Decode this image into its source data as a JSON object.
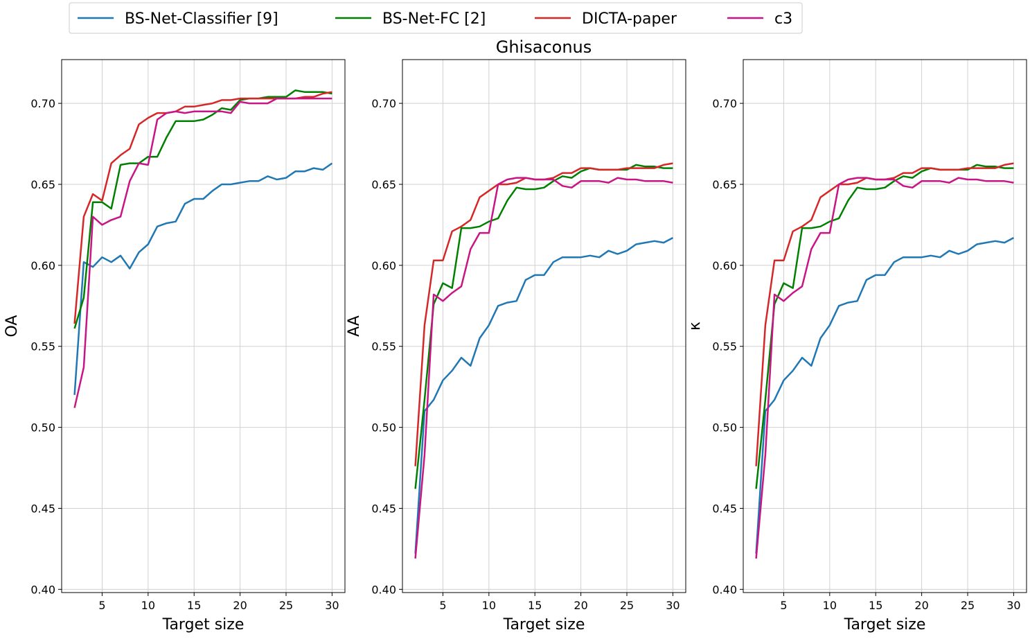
{
  "figure": {
    "title": "Ghisaconus"
  },
  "legend": {
    "placement": "top",
    "entries": [
      "BS-Net-Classifier [9]",
      "BS-Net-FC [2]",
      "DICTA-paper",
      "c3"
    ]
  },
  "colors": {
    "BS-Net-Classifier [9]": "#1f77b4",
    "BS-Net-FC [2]": "#008000",
    "DICTA-paper": "#d62728",
    "c3": "#c71585"
  },
  "chart_data": [
    {
      "type": "line",
      "xlabel": "Target size",
      "ylabel": "OA",
      "xlim": [
        0.6,
        31.4
      ],
      "ylim": [
        0.398,
        0.727
      ],
      "xticks": [
        5,
        10,
        15,
        20,
        25,
        30
      ],
      "yticks": [
        "0.40",
        "0.45",
        "0.50",
        "0.55",
        "0.60",
        "0.65",
        "0.70"
      ],
      "grid": true,
      "x": [
        2,
        3,
        4,
        5,
        6,
        7,
        8,
        9,
        10,
        11,
        12,
        13,
        14,
        15,
        16,
        17,
        18,
        19,
        20,
        21,
        22,
        23,
        24,
        25,
        26,
        27,
        28,
        29,
        30
      ],
      "series": [
        {
          "name": "BS-Net-Classifier [9]",
          "values": [
            0.52,
            0.602,
            0.599,
            0.605,
            0.602,
            0.606,
            0.598,
            0.608,
            0.613,
            0.624,
            0.626,
            0.627,
            0.638,
            0.641,
            0.641,
            0.646,
            0.65,
            0.65,
            0.651,
            0.652,
            0.652,
            0.655,
            0.653,
            0.654,
            0.658,
            0.658,
            0.66,
            0.659,
            0.663
          ]
        },
        {
          "name": "BS-Net-FC [2]",
          "values": [
            0.561,
            0.58,
            0.639,
            0.639,
            0.635,
            0.662,
            0.663,
            0.663,
            0.667,
            0.667,
            0.679,
            0.689,
            0.689,
            0.689,
            0.69,
            0.693,
            0.697,
            0.696,
            0.702,
            0.703,
            0.703,
            0.704,
            0.704,
            0.704,
            0.708,
            0.707,
            0.707,
            0.707,
            0.706
          ]
        },
        {
          "name": "DICTA-paper",
          "values": [
            0.564,
            0.63,
            0.644,
            0.64,
            0.663,
            0.668,
            0.672,
            0.687,
            0.691,
            0.694,
            0.694,
            0.695,
            0.698,
            0.698,
            0.699,
            0.7,
            0.702,
            0.702,
            0.703,
            0.703,
            0.703,
            0.703,
            0.703,
            0.703,
            0.703,
            0.704,
            0.704,
            0.706,
            0.707
          ]
        },
        {
          "name": "c3",
          "values": [
            0.512,
            0.537,
            0.63,
            0.625,
            0.628,
            0.63,
            0.652,
            0.663,
            0.662,
            0.69,
            0.694,
            0.695,
            0.694,
            0.695,
            0.695,
            0.695,
            0.695,
            0.694,
            0.701,
            0.7,
            0.7,
            0.7,
            0.703,
            0.703,
            0.703,
            0.703,
            0.703,
            0.703,
            0.703
          ]
        }
      ]
    },
    {
      "type": "line",
      "xlabel": "Target size",
      "ylabel": "AA",
      "xlim": [
        0.6,
        31.4
      ],
      "ylim": [
        0.398,
        0.727
      ],
      "xticks": [
        5,
        10,
        15,
        20,
        25,
        30
      ],
      "yticks": [
        "0.40",
        "0.45",
        "0.50",
        "0.55",
        "0.60",
        "0.65",
        "0.70"
      ],
      "grid": true,
      "x": [
        2,
        3,
        4,
        5,
        6,
        7,
        8,
        9,
        10,
        11,
        12,
        13,
        14,
        15,
        16,
        17,
        18,
        19,
        20,
        21,
        22,
        23,
        24,
        25,
        26,
        27,
        28,
        29,
        30
      ],
      "series": [
        {
          "name": "BS-Net-Classifier [9]",
          "values": [
            0.422,
            0.51,
            0.517,
            0.529,
            0.535,
            0.543,
            0.538,
            0.555,
            0.563,
            0.575,
            0.577,
            0.578,
            0.591,
            0.594,
            0.594,
            0.602,
            0.605,
            0.605,
            0.605,
            0.606,
            0.605,
            0.609,
            0.607,
            0.609,
            0.613,
            0.614,
            0.615,
            0.614,
            0.617
          ]
        },
        {
          "name": "BS-Net-FC [2]",
          "values": [
            0.462,
            0.517,
            0.576,
            0.589,
            0.586,
            0.623,
            0.623,
            0.624,
            0.627,
            0.629,
            0.64,
            0.648,
            0.647,
            0.647,
            0.648,
            0.652,
            0.655,
            0.654,
            0.658,
            0.66,
            0.659,
            0.659,
            0.659,
            0.659,
            0.662,
            0.661,
            0.661,
            0.66,
            0.66
          ]
        },
        {
          "name": "DICTA-paper",
          "values": [
            0.476,
            0.563,
            0.603,
            0.603,
            0.621,
            0.624,
            0.628,
            0.642,
            0.646,
            0.65,
            0.65,
            0.651,
            0.654,
            0.653,
            0.653,
            0.654,
            0.657,
            0.657,
            0.66,
            0.66,
            0.659,
            0.659,
            0.659,
            0.66,
            0.66,
            0.66,
            0.66,
            0.662,
            0.663
          ]
        },
        {
          "name": "c3",
          "values": [
            0.419,
            0.483,
            0.582,
            0.578,
            0.583,
            0.587,
            0.61,
            0.62,
            0.62,
            0.65,
            0.653,
            0.654,
            0.654,
            0.653,
            0.653,
            0.653,
            0.649,
            0.648,
            0.652,
            0.652,
            0.652,
            0.651,
            0.654,
            0.653,
            0.653,
            0.652,
            0.652,
            0.652,
            0.651
          ]
        }
      ]
    },
    {
      "type": "line",
      "xlabel": "Target size",
      "ylabel": "κ",
      "xlim": [
        0.6,
        31.4
      ],
      "ylim": [
        0.398,
        0.727
      ],
      "xticks": [
        5,
        10,
        15,
        20,
        25,
        30
      ],
      "yticks": [
        "0.40",
        "0.45",
        "0.50",
        "0.55",
        "0.60",
        "0.65",
        "0.70"
      ],
      "grid": true,
      "x": [
        2,
        3,
        4,
        5,
        6,
        7,
        8,
        9,
        10,
        11,
        12,
        13,
        14,
        15,
        16,
        17,
        18,
        19,
        20,
        21,
        22,
        23,
        24,
        25,
        26,
        27,
        28,
        29,
        30
      ],
      "series": [
        {
          "name": "BS-Net-Classifier [9]",
          "values": [
            0.422,
            0.51,
            0.517,
            0.529,
            0.535,
            0.543,
            0.538,
            0.555,
            0.563,
            0.575,
            0.577,
            0.578,
            0.591,
            0.594,
            0.594,
            0.602,
            0.605,
            0.605,
            0.605,
            0.606,
            0.605,
            0.609,
            0.607,
            0.609,
            0.613,
            0.614,
            0.615,
            0.614,
            0.617
          ]
        },
        {
          "name": "BS-Net-FC [2]",
          "values": [
            0.462,
            0.517,
            0.576,
            0.589,
            0.586,
            0.623,
            0.623,
            0.624,
            0.627,
            0.629,
            0.64,
            0.648,
            0.647,
            0.647,
            0.648,
            0.652,
            0.655,
            0.654,
            0.658,
            0.66,
            0.659,
            0.659,
            0.659,
            0.659,
            0.662,
            0.661,
            0.661,
            0.66,
            0.66
          ]
        },
        {
          "name": "DICTA-paper",
          "values": [
            0.476,
            0.563,
            0.603,
            0.603,
            0.621,
            0.624,
            0.628,
            0.642,
            0.646,
            0.65,
            0.65,
            0.651,
            0.654,
            0.653,
            0.653,
            0.654,
            0.657,
            0.657,
            0.66,
            0.66,
            0.659,
            0.659,
            0.659,
            0.66,
            0.66,
            0.66,
            0.66,
            0.662,
            0.663
          ]
        },
        {
          "name": "c3",
          "values": [
            0.419,
            0.483,
            0.582,
            0.578,
            0.583,
            0.587,
            0.61,
            0.62,
            0.62,
            0.65,
            0.653,
            0.654,
            0.654,
            0.653,
            0.653,
            0.653,
            0.649,
            0.648,
            0.652,
            0.652,
            0.652,
            0.651,
            0.654,
            0.653,
            0.653,
            0.652,
            0.652,
            0.652,
            0.651
          ]
        }
      ]
    }
  ]
}
